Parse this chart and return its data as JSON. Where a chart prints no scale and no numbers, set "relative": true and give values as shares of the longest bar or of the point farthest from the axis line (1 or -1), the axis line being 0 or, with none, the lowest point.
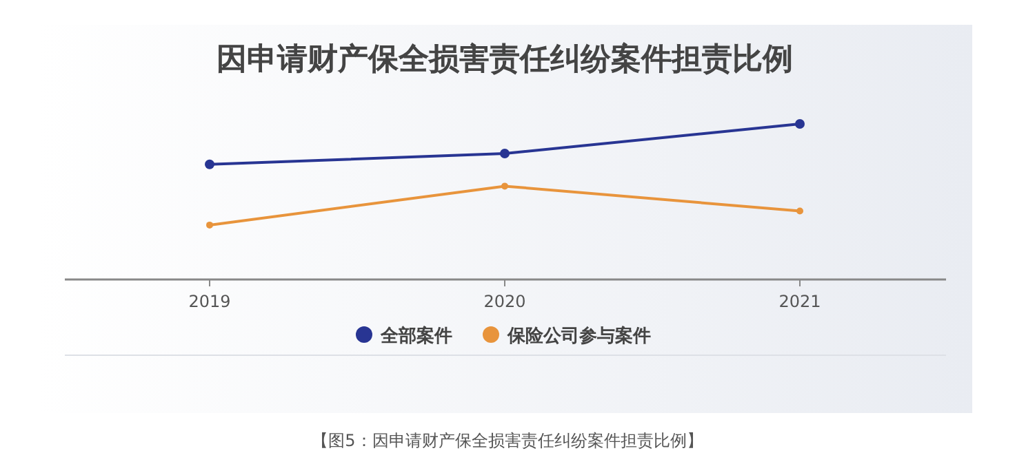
{
  "chart_data": {
    "type": "line",
    "title": "因申请财产保全损害责任纠纷案件担责比例",
    "categories": [
      "2019",
      "2020",
      "2021"
    ],
    "relative": true,
    "marker": "circle",
    "legend": "bottom",
    "series": [
      {
        "name": "全部案件",
        "color": "#283593",
        "values": [
          0.74,
          0.81,
          1
        ]
      },
      {
        "name": "保险公司参与案件",
        "color": "#e8943c",
        "values": [
          0.35,
          0.6,
          0.44
        ]
      }
    ],
    "annotations": [
      "【图5：因申请财产保全损害责任纠纷案件担责比例】"
    ]
  }
}
